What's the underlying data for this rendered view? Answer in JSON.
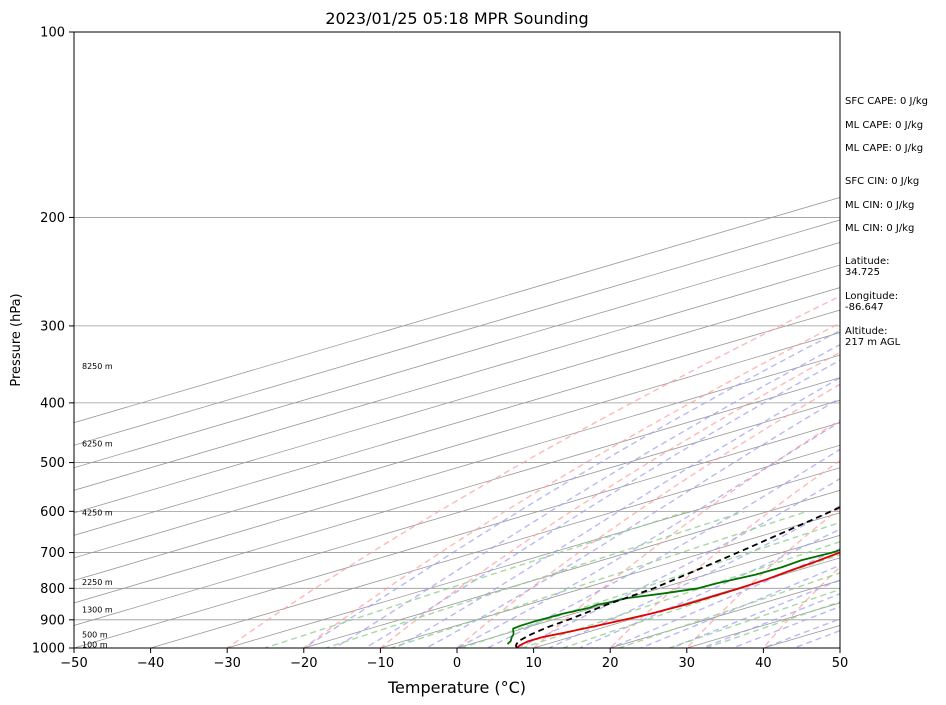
{
  "chart_data": {
    "type": "line",
    "title": "2023/01/25 05:18 MPR Sounding",
    "xlabel": "Temperature (°C)",
    "ylabel": "Pressure (hPa)",
    "xlim": [
      -50,
      50
    ],
    "ylim": [
      1000,
      100
    ],
    "y_scale": "log",
    "skew": "skew-T",
    "grid": true,
    "x_ticks": [
      "−50",
      "−40",
      "−30",
      "−20",
      "−10",
      "0",
      "10",
      "20",
      "30",
      "40",
      "50"
    ],
    "y_ticks": [
      {
        "p": 100,
        "label": "100"
      },
      {
        "p": 200,
        "label": "200"
      },
      {
        "p": 300,
        "label": "300"
      },
      {
        "p": 400,
        "label": "400"
      },
      {
        "p": 500,
        "label": "500"
      },
      {
        "p": 600,
        "label": "600"
      },
      {
        "p": 700,
        "label": "700"
      },
      {
        "p": 800,
        "label": "800"
      },
      {
        "p": 900,
        "label": "900"
      },
      {
        "p": 1000,
        "label": "1000"
      }
    ],
    "colors": {
      "temperature": "#e00000",
      "dewpoint": "#007000",
      "parcel": "#000000",
      "dry_adiabat": "#ff9a9a",
      "moist_adiabat": "#9f9aee",
      "mixing_ratio": "#8fcf8f",
      "isotherm": "#999999"
    },
    "series": [
      {
        "points": [
          [
            1000,
            7.8
          ],
          [
            990,
            7.0
          ],
          [
            975,
            6.3
          ],
          [
            960,
            6.3
          ],
          [
            945,
            7.2
          ],
          [
            925,
            8.2
          ],
          [
            900,
            9.3
          ],
          [
            880,
            10.1
          ],
          [
            850,
            10.6
          ],
          [
            820,
            10.5
          ],
          [
            800,
            10.4
          ],
          [
            775,
            10.0
          ],
          [
            750,
            9.2
          ],
          [
            725,
            8.5
          ],
          [
            700,
            7.6
          ],
          [
            675,
            6.7
          ],
          [
            650,
            6.2
          ],
          [
            600,
            3.8
          ],
          [
            550,
            0.6
          ],
          [
            500,
            -2.7
          ],
          [
            450,
            -6.4
          ],
          [
            400,
            -10.5
          ],
          [
            375,
            -12.1
          ],
          [
            350,
            -14.4
          ],
          [
            325,
            -16.8
          ],
          [
            300,
            -19.3
          ],
          [
            280,
            -21.1
          ],
          [
            270,
            -22.0
          ]
        ]
      },
      {
        "points": [
          [
            985,
            4.8
          ],
          [
            975,
            4.0
          ],
          [
            960,
            2.3
          ],
          [
            950,
            1.3
          ],
          [
            940,
            0.0
          ],
          [
            930,
            -1.3
          ],
          [
            920,
            -1.6
          ],
          [
            905,
            -1.7
          ],
          [
            895,
            -1.5
          ],
          [
            880,
            -1.4
          ],
          [
            870,
            -1.0
          ],
          [
            860,
            -0.6
          ],
          [
            850,
            -0.9
          ],
          [
            845,
            -0.4
          ],
          [
            830,
            0.0
          ],
          [
            815,
            2.8
          ],
          [
            800,
            5.0
          ],
          [
            785,
            5.2
          ],
          [
            760,
            6.4
          ],
          [
            740,
            6.6
          ],
          [
            720,
            6.0
          ],
          [
            700,
            6.6
          ],
          [
            675,
            6.2
          ],
          [
            650,
            5.4
          ],
          [
            600,
            2.8
          ],
          [
            550,
            0.1
          ],
          [
            500,
            -2.9
          ],
          [
            450,
            -6.5
          ],
          [
            400,
            -10.6
          ],
          [
            375,
            -12.5
          ],
          [
            350,
            -14.7
          ],
          [
            325,
            -17.4
          ],
          [
            300,
            -20.8
          ],
          [
            285,
            -23.7
          ],
          [
            280,
            -24.5
          ],
          [
            270,
            -24.2
          ]
        ]
      },
      {
        "points": [
          [
            1000,
            7.8
          ],
          [
            990,
            6.5
          ],
          [
            975,
            5.0
          ],
          [
            950,
            3.6
          ],
          [
            925,
            2.6
          ],
          [
            900,
            2.0
          ],
          [
            850,
            0.3
          ],
          [
            800,
            -0.8
          ],
          [
            700,
            -5.7
          ],
          [
            600,
            -11.8
          ],
          [
            500,
            -20.0
          ],
          [
            400,
            -31.0
          ],
          [
            300,
            -46.0
          ],
          [
            270,
            -52.0
          ]
        ]
      }
    ],
    "height_labels": [
      {
        "p": 350,
        "label": "8250 m"
      },
      {
        "p": 467,
        "label": "6250 m"
      },
      {
        "p": 605,
        "label": "4250 m"
      },
      {
        "p": 785,
        "label": "2250 m"
      },
      {
        "p": 870,
        "label": "1300 m"
      },
      {
        "p": 955,
        "label": "500 m"
      },
      {
        "p": 990,
        "label": "100 m"
      }
    ],
    "annotations": [
      {
        "id": "sfc-cape",
        "text": "SFC CAPE: 0 J/kg"
      },
      {
        "id": "ml-cape",
        "text": "ML CAPE: 0 J/kg"
      },
      {
        "id": "ml-cape-2",
        "text": "ML CAPE: 0 J/kg"
      },
      {
        "id": "sfc-cin",
        "text": "SFC CIN: 0 J/kg"
      },
      {
        "id": "ml-cin",
        "text": "ML CIN: 0 J/kg"
      },
      {
        "id": "ml-cin-2",
        "text": "ML CIN: 0 J/kg"
      },
      {
        "id": "latitude",
        "lines": [
          "Latitude:",
          "34.725"
        ]
      },
      {
        "id": "longitude",
        "lines": [
          "Longitude:",
          "-86.647"
        ]
      },
      {
        "id": "altitude",
        "lines": [
          "Altitude:",
          "217 m AGL"
        ]
      }
    ]
  }
}
